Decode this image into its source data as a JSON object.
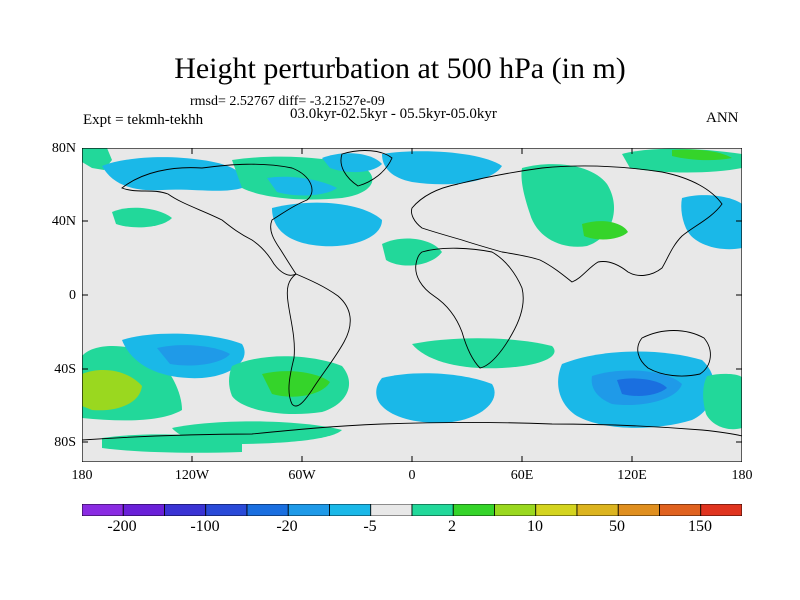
{
  "title": "Height perturbation at 500 hPa (in m)",
  "stats": "rmsd= 2.52767 diff= -3.21527e-09",
  "experiment": "Expt = tekmh-tekhh",
  "periods": "03.0kyr-02.5kyr - 05.5kyr-05.0kyr",
  "season": "ANN",
  "y_ticks": [
    "80N",
    "40N",
    "0",
    "40S",
    "80S"
  ],
  "x_ticks": [
    "180",
    "120W",
    "60W",
    "0",
    "60E",
    "120E",
    "180"
  ],
  "colorbar": {
    "colors": [
      "#8a2be2",
      "#6a20d8",
      "#3a33d4",
      "#2a4ad8",
      "#1a6fe0",
      "#1f9ae8",
      "#1ab8e8",
      "#e8e8e8",
      "#22d89a",
      "#35d42a",
      "#9ad81f",
      "#d4d41f",
      "#dcb41f",
      "#e08f1f",
      "#e0621f",
      "#e0341f"
    ],
    "tick_labels": [
      "-200",
      "-100",
      "-20",
      "-5",
      "2",
      "10",
      "50",
      "150"
    ]
  },
  "colors": {
    "background": "#e8e8e8",
    "positive_small": "#22d89a",
    "positive_mid": "#35d42a",
    "positive_large": "#9ad81f",
    "negative_small": "#1ab8e8",
    "negative_mid": "#1f9ae8",
    "negative_large": "#1a6fe0"
  }
}
